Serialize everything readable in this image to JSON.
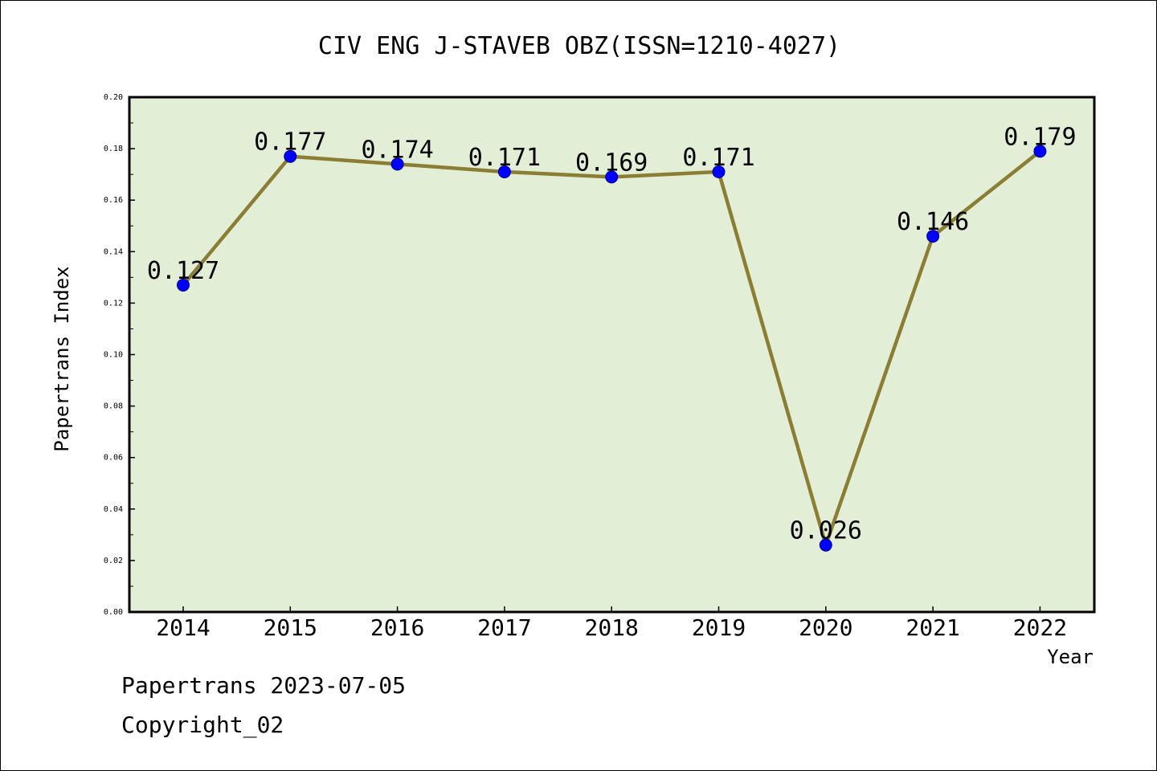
{
  "chart_data": {
    "type": "line",
    "title": "CIV ENG J-STAVEB OBZ(ISSN=1210-4027)",
    "xlabel": "Year",
    "ylabel": "Papertrans Index",
    "categories": [
      "2014",
      "2015",
      "2016",
      "2017",
      "2018",
      "2019",
      "2020",
      "2021",
      "2022"
    ],
    "series": [
      {
        "values": [
          0.127,
          0.177,
          0.174,
          0.171,
          0.169,
          0.171,
          0.026,
          0.146,
          0.179
        ],
        "labels": [
          "0.127",
          "0.177",
          "0.174",
          "0.171",
          "0.169",
          "0.171",
          "0.026",
          "0.146",
          "0.179"
        ]
      }
    ],
    "ylim": [
      0,
      0.2
    ],
    "yticks": [
      "0.00",
      "0.02",
      "0.04",
      "0.06",
      "0.08",
      "0.10",
      "0.12",
      "0.14",
      "0.16",
      "0.18",
      "0.20"
    ],
    "grid": false,
    "colors": {
      "plot_background": "#e2efd6",
      "line": "#8b7d34",
      "marker": "#0000ff",
      "marker_edge": "#00008b",
      "axes": "#000000"
    }
  },
  "footer": {
    "line1": "Papertrans 2023-07-05",
    "line2": "Copyright_02"
  }
}
